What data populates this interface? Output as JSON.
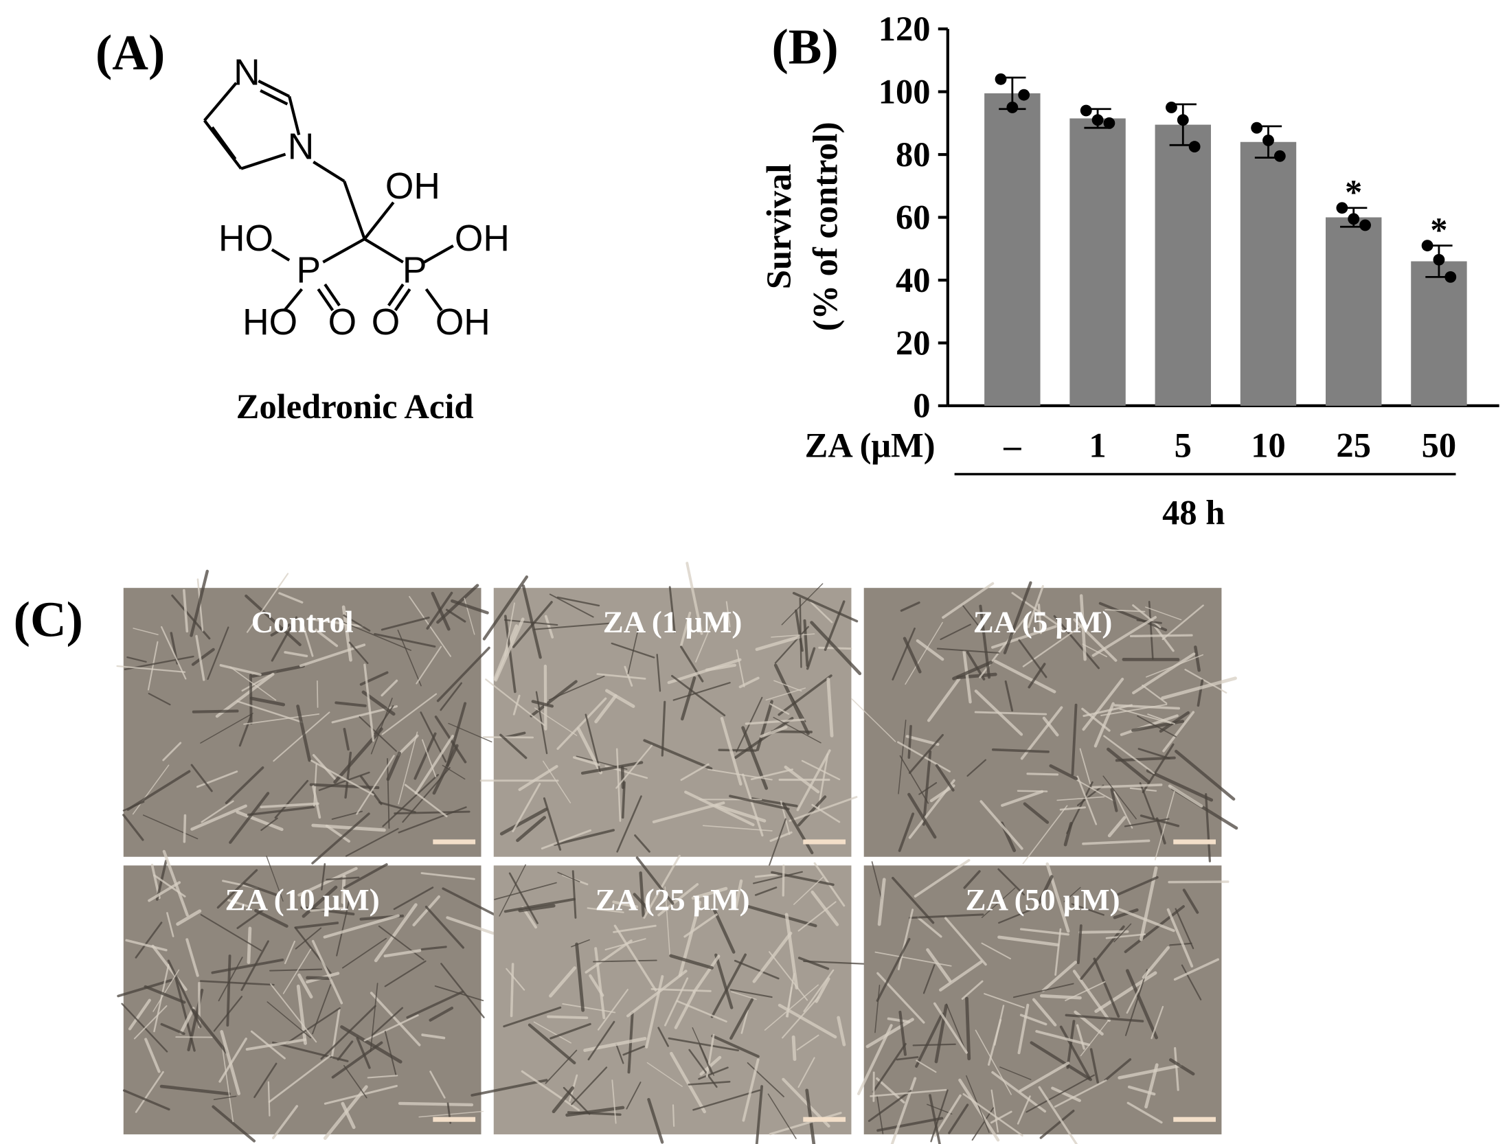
{
  "panel_a": {
    "panel_label": "(A)",
    "atoms": [
      "N",
      "N",
      "OH",
      "HO",
      "P",
      "P",
      "OH",
      "HO",
      "O",
      "O",
      "OH"
    ],
    "name": "Zoledronic Acid"
  },
  "chart_data": {
    "type": "bar",
    "panel_label": "(B)",
    "ylabel": [
      "Survival",
      "(% of control)"
    ],
    "xlabel": "ZA (μM)",
    "group_label": "48 h",
    "categories": [
      "–",
      "1",
      "5",
      "10",
      "25",
      "50"
    ],
    "values": [
      99.5,
      91.5,
      89.5,
      84,
      60,
      46
    ],
    "errors": [
      5,
      3,
      6.5,
      5,
      3,
      5
    ],
    "points": [
      [
        104,
        95,
        99
      ],
      [
        94,
        91,
        90
      ],
      [
        95,
        91,
        82.5
      ],
      [
        88.5,
        84.5,
        79.5
      ],
      [
        63,
        59.5,
        57.5
      ],
      [
        51,
        46.5,
        41
      ]
    ],
    "significance": [
      null,
      null,
      null,
      null,
      "*",
      "*"
    ],
    "color": "#808080",
    "ylim": [
      0,
      120
    ],
    "yticks": [
      0,
      20,
      40,
      60,
      80,
      100,
      120
    ]
  },
  "panel_c": {
    "panel_label": "(C)",
    "images": [
      "Control",
      "ZA (1 μM)",
      "ZA (5 μM)",
      "ZA (10 μM)",
      "ZA (25 μM)",
      "ZA (50 μM)"
    ]
  }
}
